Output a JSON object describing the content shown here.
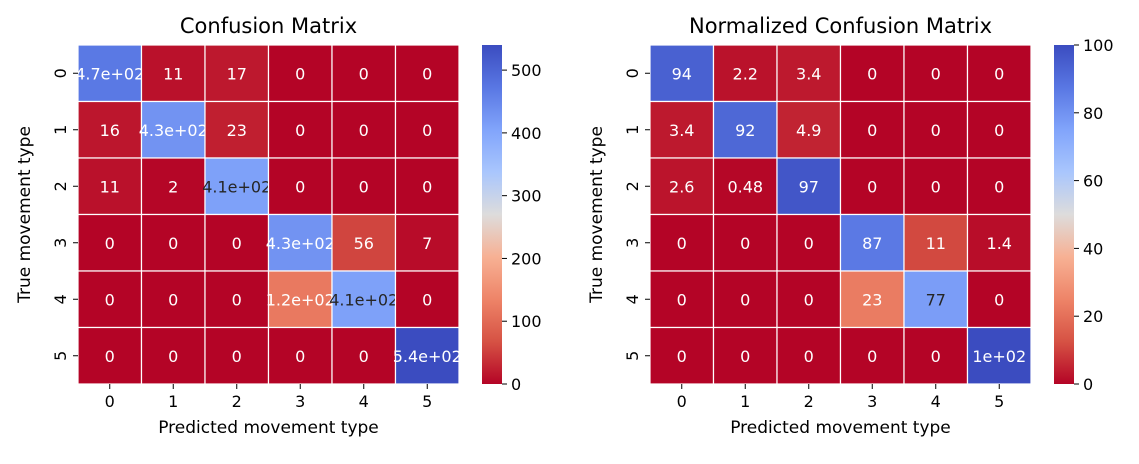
{
  "chart_data": [
    {
      "type": "heatmap",
      "title": "Confusion Matrix",
      "xlabel": "Predicted movement type",
      "ylabel": "True movement type",
      "x_categories": [
        "0",
        "1",
        "2",
        "3",
        "4",
        "5"
      ],
      "y_categories": [
        "0",
        "1",
        "2",
        "3",
        "4",
        "5"
      ],
      "values": [
        [
          470,
          11,
          17,
          0,
          0,
          0
        ],
        [
          16,
          430,
          23,
          0,
          0,
          0
        ],
        [
          11,
          2,
          410,
          0,
          0,
          0
        ],
        [
          0,
          0,
          0,
          430,
          56,
          7
        ],
        [
          0,
          0,
          0,
          120,
          410,
          0
        ],
        [
          0,
          0,
          0,
          0,
          0,
          540
        ]
      ],
      "cell_labels": [
        [
          "4.7e+02",
          "11",
          "17",
          "0",
          "0",
          "0"
        ],
        [
          "16",
          "4.3e+02",
          "23",
          "0",
          "0",
          "0"
        ],
        [
          "11",
          "2",
          "4.1e+02",
          "0",
          "0",
          "0"
        ],
        [
          "0",
          "0",
          "0",
          "4.3e+02",
          "56",
          "7"
        ],
        [
          "0",
          "0",
          "0",
          "1.2e+02",
          "4.1e+02",
          "0"
        ],
        [
          "0",
          "0",
          "0",
          "0",
          "0",
          "5.4e+02"
        ]
      ],
      "colormap": "coolwarm_r",
      "vmin": 0,
      "vmax": 540,
      "colorbar_ticks": [
        0,
        100,
        200,
        300,
        400,
        500
      ]
    },
    {
      "type": "heatmap",
      "title": "Normalized Confusion Matrix",
      "xlabel": "Predicted movement type",
      "ylabel": "True movement type",
      "x_categories": [
        "0",
        "1",
        "2",
        "3",
        "4",
        "5"
      ],
      "y_categories": [
        "0",
        "1",
        "2",
        "3",
        "4",
        "5"
      ],
      "values": [
        [
          94,
          2.2,
          3.4,
          0,
          0,
          0
        ],
        [
          3.4,
          92,
          4.9,
          0,
          0,
          0
        ],
        [
          2.6,
          0.48,
          97,
          0,
          0,
          0
        ],
        [
          0,
          0,
          0,
          87,
          11,
          1.4
        ],
        [
          0,
          0,
          0,
          23,
          77,
          0
        ],
        [
          0,
          0,
          0,
          0,
          0,
          100
        ]
      ],
      "cell_labels": [
        [
          "94",
          "2.2",
          "3.4",
          "0",
          "0",
          "0"
        ],
        [
          "3.4",
          "92",
          "4.9",
          "0",
          "0",
          "0"
        ],
        [
          "2.6",
          "0.48",
          "97",
          "0",
          "0",
          "0"
        ],
        [
          "0",
          "0",
          "0",
          "87",
          "11",
          "1.4"
        ],
        [
          "0",
          "0",
          "0",
          "23",
          "77",
          "0"
        ],
        [
          "0",
          "0",
          "0",
          "0",
          "0",
          "1e+02"
        ]
      ],
      "colormap": "coolwarm_r",
      "vmin": 0,
      "vmax": 100,
      "colorbar_ticks": [
        0,
        20,
        40,
        60,
        80,
        100
      ]
    }
  ]
}
